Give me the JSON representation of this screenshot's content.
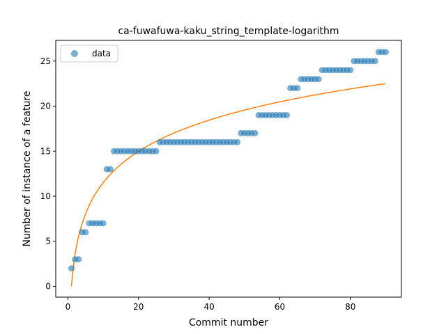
{
  "chart_data": {
    "type": "scatter",
    "title": "ca-fuwafuwa-kaku_string_template-logarithm",
    "xlabel": "Commit number",
    "ylabel": "Number of instance of a feature",
    "xlim": [
      -3.45,
      94.45
    ],
    "ylim": [
      -1.2,
      27.3
    ],
    "xticks": [
      0,
      20,
      40,
      60,
      80
    ],
    "yticks": [
      0,
      5,
      10,
      15,
      20,
      25
    ],
    "grid": false,
    "legend": {
      "position": "top-left",
      "entries": [
        "data"
      ]
    },
    "colors": {
      "data": "#1f77b4",
      "fit": "#ff7f0e"
    },
    "series": [
      {
        "name": "data",
        "kind": "scatter",
        "x": [
          1,
          2,
          3,
          4,
          5,
          6,
          7,
          8,
          9,
          10,
          11,
          12,
          13,
          14,
          15,
          16,
          17,
          18,
          19,
          20,
          21,
          22,
          23,
          24,
          25,
          26,
          27,
          28,
          29,
          30,
          31,
          32,
          33,
          34,
          35,
          36,
          37,
          38,
          39,
          40,
          41,
          42,
          43,
          44,
          45,
          46,
          47,
          48,
          49,
          50,
          51,
          52,
          53,
          54,
          55,
          56,
          57,
          58,
          59,
          60,
          61,
          62,
          63,
          64,
          65,
          66,
          67,
          68,
          69,
          70,
          71,
          72,
          73,
          74,
          75,
          76,
          77,
          78,
          79,
          80,
          81,
          82,
          83,
          84,
          85,
          86,
          87,
          88,
          89,
          90
        ],
        "y": [
          2,
          3,
          3,
          6,
          6,
          7,
          7,
          7,
          7,
          7,
          13,
          13,
          15,
          15,
          15,
          15,
          15,
          15,
          15,
          15,
          15,
          15,
          15,
          15,
          15,
          16,
          16,
          16,
          16,
          16,
          16,
          16,
          16,
          16,
          16,
          16,
          16,
          16,
          16,
          16,
          16,
          16,
          16,
          16,
          16,
          16,
          16,
          16,
          17,
          17,
          17,
          17,
          17,
          19,
          19,
          19,
          19,
          19,
          19,
          19,
          19,
          19,
          22,
          22,
          22,
          23,
          23,
          23,
          23,
          23,
          23,
          24,
          24,
          24,
          24,
          24,
          24,
          24,
          24,
          24,
          25,
          25,
          25,
          25,
          25,
          25,
          25,
          26,
          26,
          26
        ]
      },
      {
        "kind": "line",
        "function": "y = 5.0 * ln(x)",
        "x_range": [
          1,
          90
        ]
      }
    ]
  }
}
